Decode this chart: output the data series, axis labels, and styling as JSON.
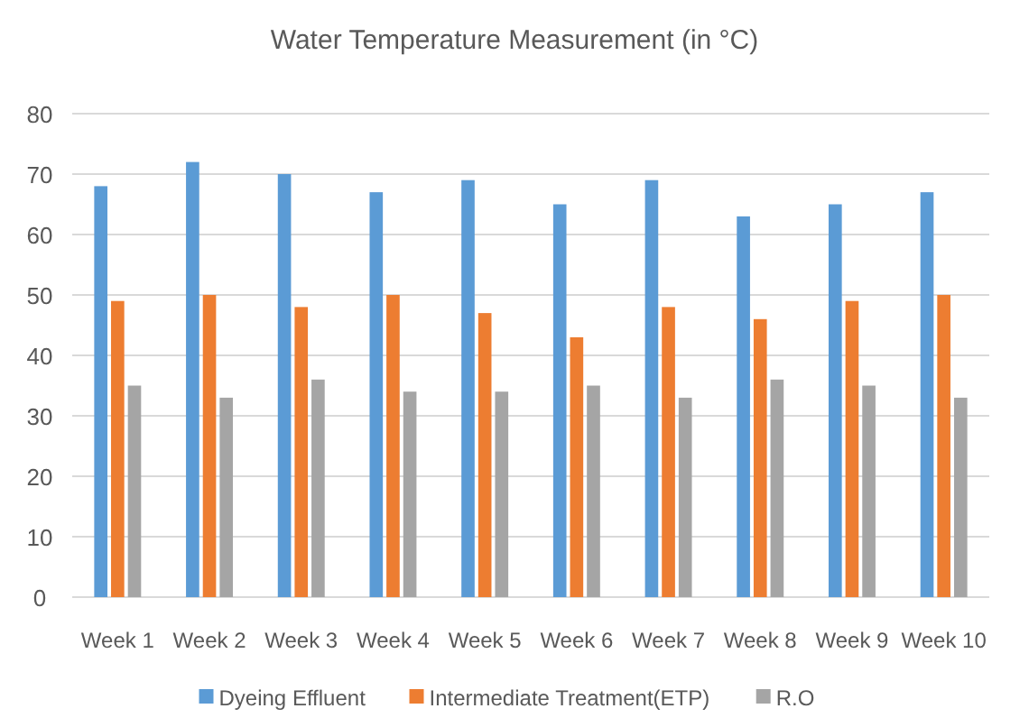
{
  "chart_data": {
    "type": "bar",
    "title": "Water Temperature Measurement (in °C)",
    "categories": [
      "Week 1",
      "Week 2",
      "Week 3",
      "Week 4",
      "Week 5",
      "Week 6",
      "Week 7",
      "Week 8",
      "Week 9",
      "Week 10"
    ],
    "series": [
      {
        "name": "Dyeing Effluent",
        "color": "#5b9bd5",
        "values": [
          68,
          72,
          70,
          67,
          69,
          65,
          69,
          63,
          65,
          67
        ]
      },
      {
        "name": "Intermediate Treatment(ETP)",
        "color": "#ed7d31",
        "values": [
          49,
          50,
          48,
          50,
          47,
          43,
          48,
          46,
          49,
          50
        ]
      },
      {
        "name": "R.O",
        "color": "#a5a5a5",
        "values": [
          35,
          33,
          36,
          34,
          34,
          35,
          33,
          36,
          35,
          33
        ]
      }
    ],
    "ylim": [
      0,
      80
    ],
    "yticks": [
      0,
      10,
      20,
      30,
      40,
      50,
      60,
      70,
      80
    ],
    "grid": "y",
    "legend": "bottom"
  }
}
